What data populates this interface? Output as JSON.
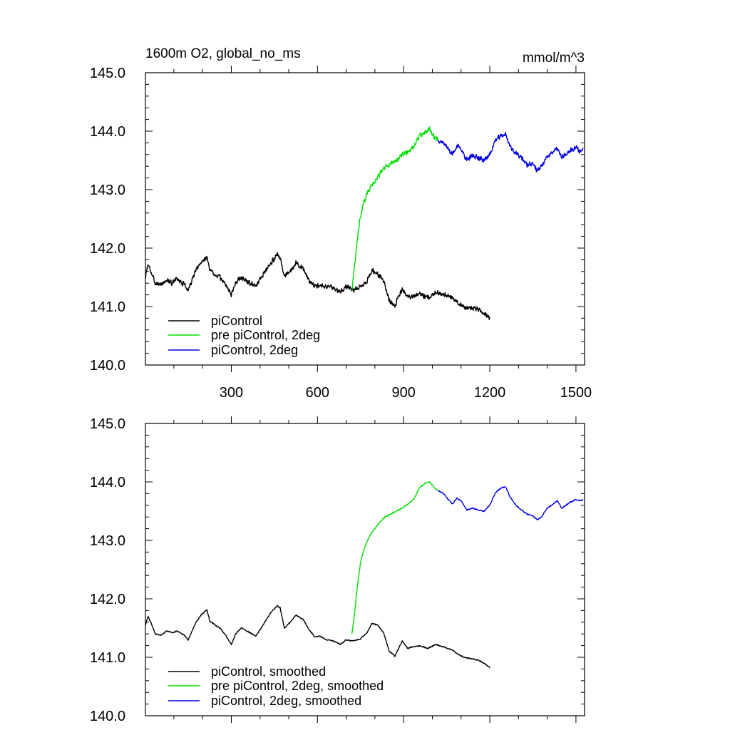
{
  "chart_data": [
    {
      "type": "line",
      "title_left": "1600m O2, global_no_ms",
      "title_right": "mmol/m^3",
      "xlim": [
        1,
        1530
      ],
      "ylim": [
        140.0,
        145.0
      ],
      "xticks": [
        300,
        600,
        900,
        1200,
        1500
      ],
      "xtick_labels": [
        "300",
        "600",
        "900",
        "1200",
        "1500"
      ],
      "yticks": [
        140,
        141,
        142,
        143,
        144,
        145
      ],
      "ytick_labels": [
        "140.0",
        "141.0",
        "142.0",
        "143.0",
        "144.0",
        "145.0"
      ],
      "legend_position": "bottom-left",
      "series": [
        {
          "name": "piControl",
          "color": "#000000",
          "x": [
            1,
            10,
            20,
            35,
            55,
            75,
            95,
            110,
            135,
            150,
            175,
            195,
            215,
            225,
            245,
            260,
            280,
            300,
            315,
            335,
            365,
            385,
            410,
            440,
            460,
            470,
            485,
            505,
            525,
            550,
            570,
            590,
            610,
            630,
            655,
            680,
            700,
            720,
            745,
            770,
            790,
            810,
            830,
            850,
            870,
            895,
            915,
            930,
            955,
            985,
            1010,
            1040,
            1070,
            1090,
            1110,
            1130,
            1160,
            1180,
            1200
          ],
          "y": [
            141.5,
            141.72,
            141.6,
            141.4,
            141.38,
            141.45,
            141.4,
            141.48,
            141.38,
            141.28,
            141.6,
            141.75,
            141.85,
            141.62,
            141.55,
            141.5,
            141.38,
            141.2,
            141.42,
            141.5,
            141.4,
            141.35,
            141.55,
            141.75,
            141.9,
            141.85,
            141.5,
            141.6,
            141.75,
            141.65,
            141.45,
            141.35,
            141.38,
            141.35,
            141.32,
            141.25,
            141.35,
            141.28,
            141.32,
            141.42,
            141.62,
            141.55,
            141.45,
            141.1,
            141.02,
            141.3,
            141.15,
            141.18,
            141.22,
            141.15,
            141.25,
            141.2,
            141.15,
            141.05,
            141.0,
            140.98,
            140.95,
            140.88,
            140.8
          ]
        },
        {
          "name": "pre piControl, 2deg",
          "color": "#00e000",
          "x": [
            720,
            730,
            740,
            750,
            760,
            770,
            785,
            800,
            815,
            835,
            855,
            875,
            895,
            915,
            935,
            955,
            975,
            990,
            1000,
            1010,
            1020
          ],
          "y": [
            141.3,
            141.7,
            142.2,
            142.55,
            142.75,
            142.9,
            143.05,
            143.15,
            143.25,
            143.38,
            143.45,
            143.5,
            143.6,
            143.65,
            143.72,
            143.92,
            143.98,
            144.05,
            143.95,
            143.88,
            143.85
          ]
        },
        {
          "name": "piControl, 2deg",
          "color": "#0000e0",
          "x": [
            1020,
            1040,
            1055,
            1070,
            1085,
            1100,
            1120,
            1140,
            1160,
            1180,
            1200,
            1220,
            1240,
            1255,
            1270,
            1290,
            1310,
            1330,
            1350,
            1365,
            1380,
            1400,
            1420,
            1435,
            1450,
            1465,
            1480,
            1500,
            1515,
            1525
          ],
          "y": [
            143.85,
            143.8,
            143.7,
            143.6,
            143.75,
            143.7,
            143.5,
            143.58,
            143.55,
            143.5,
            143.6,
            143.85,
            143.92,
            143.95,
            143.75,
            143.62,
            143.55,
            143.42,
            143.45,
            143.32,
            143.4,
            143.55,
            143.65,
            143.7,
            143.55,
            143.6,
            143.68,
            143.72,
            143.65,
            143.7
          ]
        }
      ]
    },
    {
      "type": "line",
      "xlim": [
        1,
        1530
      ],
      "ylim": [
        140.0,
        145.0
      ],
      "xticks": [
        300,
        600,
        900,
        1200,
        1500
      ],
      "yticks": [
        140,
        141,
        142,
        143,
        144,
        145
      ],
      "ytick_labels": [
        "140.0",
        "141.0",
        "142.0",
        "143.0",
        "144.0",
        "145.0"
      ],
      "legend_position": "bottom-left",
      "series": [
        {
          "name": "piControl, smoothed",
          "color": "#000000",
          "x": [
            1,
            10,
            20,
            35,
            55,
            75,
            95,
            110,
            135,
            150,
            175,
            195,
            215,
            225,
            245,
            260,
            280,
            300,
            315,
            335,
            365,
            385,
            410,
            440,
            460,
            470,
            485,
            505,
            525,
            550,
            570,
            590,
            610,
            630,
            655,
            680,
            700,
            720,
            745,
            770,
            790,
            810,
            830,
            850,
            870,
            895,
            915,
            930,
            955,
            985,
            1010,
            1040,
            1070,
            1090,
            1110,
            1130,
            1160,
            1180,
            1200
          ],
          "y": [
            141.55,
            141.7,
            141.6,
            141.4,
            141.38,
            141.45,
            141.42,
            141.45,
            141.38,
            141.3,
            141.58,
            141.72,
            141.82,
            141.62,
            141.55,
            141.5,
            141.38,
            141.22,
            141.4,
            141.5,
            141.42,
            141.36,
            141.55,
            141.78,
            141.88,
            141.85,
            141.5,
            141.6,
            141.72,
            141.65,
            141.48,
            141.35,
            141.36,
            141.3,
            141.28,
            141.22,
            141.3,
            141.28,
            141.3,
            141.4,
            141.58,
            141.55,
            141.42,
            141.1,
            141.02,
            141.28,
            141.15,
            141.18,
            141.2,
            141.15,
            141.22,
            141.18,
            141.12,
            141.05,
            141.0,
            140.98,
            140.95,
            140.9,
            140.82
          ]
        },
        {
          "name": "pre piControl, 2deg, smoothed",
          "color": "#00e000",
          "x": [
            720,
            730,
            740,
            750,
            760,
            770,
            785,
            800,
            815,
            835,
            855,
            875,
            895,
            915,
            935,
            955,
            975,
            990,
            1000,
            1010,
            1020
          ],
          "y": [
            141.4,
            141.8,
            142.25,
            142.62,
            142.82,
            142.95,
            143.1,
            143.2,
            143.3,
            143.4,
            143.45,
            143.5,
            143.55,
            143.62,
            143.7,
            143.9,
            143.98,
            144.0,
            143.95,
            143.88,
            143.85
          ]
        },
        {
          "name": "piControl, 2deg, smoothed",
          "color": "#0000e0",
          "x": [
            1020,
            1040,
            1055,
            1070,
            1085,
            1100,
            1120,
            1140,
            1160,
            1180,
            1200,
            1220,
            1240,
            1255,
            1270,
            1290,
            1310,
            1330,
            1350,
            1365,
            1380,
            1400,
            1420,
            1435,
            1450,
            1465,
            1480,
            1500,
            1515,
            1525
          ],
          "y": [
            143.85,
            143.8,
            143.7,
            143.62,
            143.72,
            143.68,
            143.52,
            143.55,
            143.52,
            143.5,
            143.6,
            143.82,
            143.9,
            143.92,
            143.75,
            143.6,
            143.52,
            143.45,
            143.42,
            143.35,
            143.4,
            143.55,
            143.62,
            143.68,
            143.55,
            143.6,
            143.65,
            143.7,
            143.68,
            143.7
          ]
        }
      ]
    }
  ]
}
